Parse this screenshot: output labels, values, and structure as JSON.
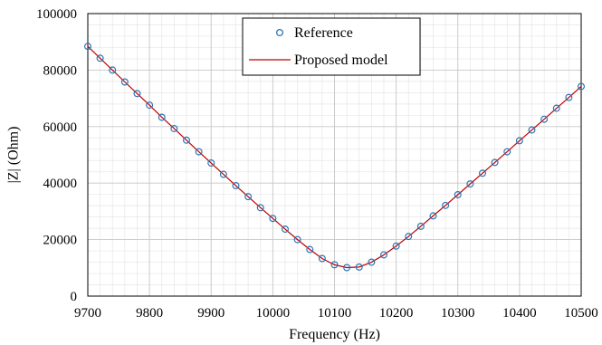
{
  "chart_data": {
    "type": "scatter",
    "xlabel": "Frequency (Hz)",
    "ylabel": "|Z| (Ohm)",
    "xlim": [
      9700,
      10500
    ],
    "ylim": [
      0,
      100000
    ],
    "x_ticks": [
      "9700",
      "9800",
      "9900",
      "10000",
      "10100",
      "10200",
      "10300",
      "10400",
      "10500"
    ],
    "y_ticks": [
      "0",
      "20000",
      "40000",
      "60000",
      "80000",
      "100000"
    ],
    "grid": true,
    "legend_position": "top-center",
    "series": [
      {
        "name": "Reference",
        "kind": "markers",
        "marker": "circle-open",
        "color": "#2E75B6",
        "x": [
          9700,
          9720,
          9740,
          9760,
          9780,
          9800,
          9820,
          9840,
          9860,
          9880,
          9900,
          9920,
          9940,
          9960,
          9980,
          10000,
          10020,
          10040,
          10060,
          10080,
          10100,
          10120,
          10140,
          10160,
          10180,
          10200,
          10220,
          10240,
          10260,
          10280,
          10300,
          10320,
          10340,
          10360,
          10380,
          10400,
          10420,
          10440,
          10460,
          10480,
          10500
        ],
        "y": [
          88400,
          84200,
          80000,
          75800,
          71700,
          67600,
          63300,
          59300,
          55200,
          51100,
          47100,
          43100,
          39100,
          35200,
          31300,
          27500,
          23700,
          20000,
          16500,
          13300,
          11100,
          10100,
          10300,
          12000,
          14600,
          17700,
          21100,
          24700,
          28400,
          32100,
          35900,
          39700,
          43500,
          47300,
          51100,
          55000,
          58800,
          62600,
          66500,
          70300,
          74200
        ]
      },
      {
        "name": "Proposed model",
        "kind": "line",
        "color": "#C00000",
        "x": [
          9700,
          9720,
          9740,
          9760,
          9780,
          9800,
          9820,
          9840,
          9860,
          9880,
          9900,
          9920,
          9940,
          9960,
          9980,
          10000,
          10020,
          10040,
          10060,
          10080,
          10100,
          10120,
          10140,
          10160,
          10180,
          10200,
          10220,
          10240,
          10260,
          10280,
          10300,
          10320,
          10340,
          10360,
          10380,
          10400,
          10420,
          10440,
          10460,
          10480,
          10500
        ],
        "y": [
          88400,
          84200,
          80000,
          75800,
          71700,
          67600,
          63300,
          59300,
          55200,
          51100,
          47100,
          43100,
          39100,
          35200,
          31300,
          27500,
          23700,
          20000,
          16500,
          13300,
          11100,
          10100,
          10300,
          12000,
          14600,
          17700,
          21100,
          24700,
          28400,
          32100,
          35900,
          39700,
          43500,
          47300,
          51100,
          55000,
          58800,
          62600,
          66500,
          70300,
          74200
        ]
      }
    ]
  }
}
